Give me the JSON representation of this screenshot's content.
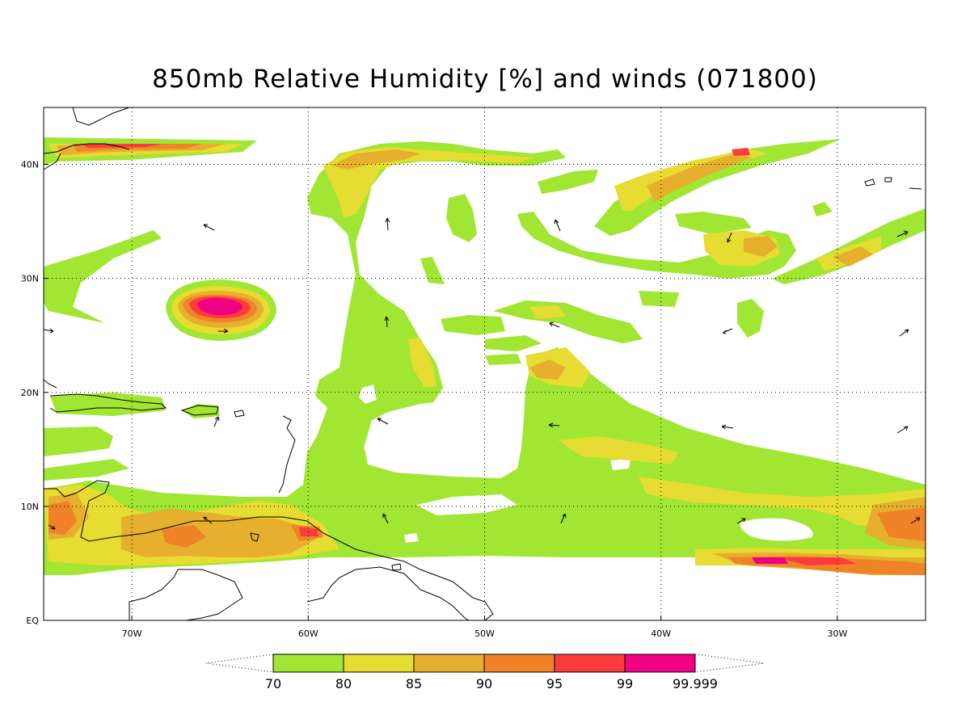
{
  "title": "850mb Relative Humidity [%] and winds (071800)",
  "map": {
    "lon_range": [
      -75,
      -25
    ],
    "lat_range": [
      0,
      45
    ],
    "lon_ticks": [
      {
        "value": -70,
        "label": "70W"
      },
      {
        "value": -60,
        "label": "60W"
      },
      {
        "value": -50,
        "label": "50W"
      },
      {
        "value": -40,
        "label": "40W"
      },
      {
        "value": -30,
        "label": "30W"
      }
    ],
    "lat_ticks": [
      {
        "value": 0,
        "label": "EQ"
      },
      {
        "value": 10,
        "label": "10N"
      },
      {
        "value": 20,
        "label": "20N"
      },
      {
        "value": 30,
        "label": "30N"
      },
      {
        "value": 40,
        "label": "40N"
      }
    ],
    "gridlines": true
  },
  "colorbar": {
    "levels": [
      "70",
      "80",
      "85",
      "90",
      "95",
      "99",
      "99.999"
    ],
    "colors": [
      "#a0e632",
      "#e6dc32",
      "#e6af2d",
      "#f08228",
      "#fa3c3c",
      "#f00082"
    ]
  }
}
